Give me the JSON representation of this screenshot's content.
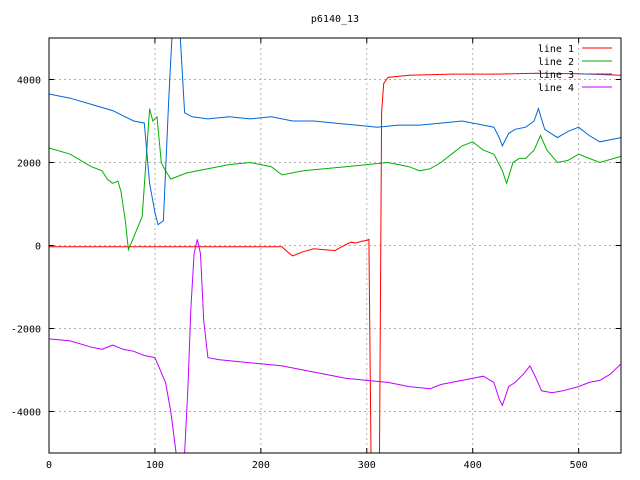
{
  "chart_data": {
    "type": "line",
    "title": "p6140_13",
    "xlabel": "",
    "ylabel": "",
    "xlim": [
      0,
      540
    ],
    "ylim": [
      -5000,
      5000
    ],
    "grid": true,
    "legend_position": "top-right",
    "x_ticks": [
      0,
      100,
      200,
      300,
      400,
      500
    ],
    "y_ticks": [
      -4000,
      -2000,
      0,
      2000,
      4000
    ],
    "x_tick_labels": [
      "0",
      "100",
      "200",
      "300",
      "400",
      "500"
    ],
    "y_tick_labels": [
      "-4000",
      "-2000",
      "0",
      "2000",
      "4000"
    ],
    "series": [
      {
        "name": "line 1",
        "color": "#ff0000",
        "points": [
          [
            0,
            -30
          ],
          [
            50,
            -30
          ],
          [
            100,
            -30
          ],
          [
            150,
            -30
          ],
          [
            200,
            -30
          ],
          [
            220,
            -30
          ],
          [
            225,
            -150
          ],
          [
            230,
            -250
          ],
          [
            240,
            -150
          ],
          [
            250,
            -80
          ],
          [
            260,
            -100
          ],
          [
            270,
            -120
          ],
          [
            275,
            -50
          ],
          [
            280,
            20
          ],
          [
            285,
            80
          ],
          [
            290,
            60
          ],
          [
            295,
            100
          ],
          [
            300,
            120
          ],
          [
            302,
            150
          ],
          [
            304,
            -5000
          ],
          [
            312,
            -5000
          ],
          [
            314,
            3200
          ],
          [
            316,
            3900
          ],
          [
            320,
            4050
          ],
          [
            340,
            4100
          ],
          [
            380,
            4130
          ],
          [
            420,
            4130
          ],
          [
            460,
            4150
          ],
          [
            500,
            4140
          ],
          [
            540,
            4100
          ]
        ]
      },
      {
        "name": "line 2",
        "color": "#00b000",
        "points": [
          [
            0,
            2350
          ],
          [
            20,
            2200
          ],
          [
            40,
            1900
          ],
          [
            50,
            1800
          ],
          [
            55,
            1600
          ],
          [
            60,
            1500
          ],
          [
            65,
            1550
          ],
          [
            68,
            1300
          ],
          [
            72,
            600
          ],
          [
            75,
            -100
          ],
          [
            80,
            200
          ],
          [
            88,
            700
          ],
          [
            95,
            3300
          ],
          [
            98,
            3000
          ],
          [
            102,
            3100
          ],
          [
            106,
            2000
          ],
          [
            110,
            1800
          ],
          [
            115,
            1600
          ],
          [
            130,
            1750
          ],
          [
            150,
            1850
          ],
          [
            170,
            1950
          ],
          [
            190,
            2000
          ],
          [
            210,
            1900
          ],
          [
            220,
            1700
          ],
          [
            240,
            1800
          ],
          [
            260,
            1850
          ],
          [
            280,
            1900
          ],
          [
            300,
            1950
          ],
          [
            320,
            2000
          ],
          [
            330,
            1950
          ],
          [
            340,
            1900
          ],
          [
            350,
            1800
          ],
          [
            360,
            1850
          ],
          [
            370,
            2000
          ],
          [
            380,
            2200
          ],
          [
            390,
            2400
          ],
          [
            400,
            2500
          ],
          [
            410,
            2300
          ],
          [
            420,
            2200
          ],
          [
            428,
            1800
          ],
          [
            432,
            1500
          ],
          [
            438,
            2000
          ],
          [
            444,
            2100
          ],
          [
            450,
            2100
          ],
          [
            458,
            2300
          ],
          [
            464,
            2650
          ],
          [
            470,
            2300
          ],
          [
            480,
            2000
          ],
          [
            490,
            2050
          ],
          [
            500,
            2200
          ],
          [
            510,
            2100
          ],
          [
            520,
            2000
          ],
          [
            540,
            2150
          ]
        ]
      },
      {
        "name": "line 3",
        "color": "#0066d8",
        "points": [
          [
            0,
            3650
          ],
          [
            20,
            3550
          ],
          [
            40,
            3400
          ],
          [
            60,
            3250
          ],
          [
            80,
            3000
          ],
          [
            90,
            2950
          ],
          [
            95,
            1500
          ],
          [
            100,
            800
          ],
          [
            103,
            500
          ],
          [
            108,
            600
          ],
          [
            113,
            3500
          ],
          [
            116,
            5000
          ],
          [
            124,
            5000
          ],
          [
            128,
            3200
          ],
          [
            135,
            3100
          ],
          [
            150,
            3050
          ],
          [
            170,
            3100
          ],
          [
            190,
            3050
          ],
          [
            210,
            3100
          ],
          [
            230,
            3000
          ],
          [
            250,
            3000
          ],
          [
            270,
            2950
          ],
          [
            290,
            2900
          ],
          [
            310,
            2850
          ],
          [
            330,
            2900
          ],
          [
            350,
            2900
          ],
          [
            370,
            2950
          ],
          [
            390,
            3000
          ],
          [
            410,
            2900
          ],
          [
            420,
            2850
          ],
          [
            425,
            2600
          ],
          [
            428,
            2400
          ],
          [
            434,
            2700
          ],
          [
            440,
            2800
          ],
          [
            450,
            2850
          ],
          [
            458,
            3000
          ],
          [
            462,
            3300
          ],
          [
            468,
            2800
          ],
          [
            480,
            2600
          ],
          [
            490,
            2750
          ],
          [
            500,
            2850
          ],
          [
            510,
            2650
          ],
          [
            520,
            2500
          ],
          [
            530,
            2550
          ],
          [
            540,
            2600
          ]
        ]
      },
      {
        "name": "line 4",
        "color": "#c000ff",
        "points": [
          [
            0,
            -2250
          ],
          [
            20,
            -2300
          ],
          [
            40,
            -2450
          ],
          [
            50,
            -2500
          ],
          [
            60,
            -2400
          ],
          [
            70,
            -2500
          ],
          [
            80,
            -2550
          ],
          [
            90,
            -2650
          ],
          [
            100,
            -2700
          ],
          [
            110,
            -3300
          ],
          [
            115,
            -4000
          ],
          [
            120,
            -5000
          ],
          [
            128,
            -5000
          ],
          [
            131,
            -3500
          ],
          [
            134,
            -1500
          ],
          [
            137,
            -200
          ],
          [
            140,
            150
          ],
          [
            143,
            -200
          ],
          [
            146,
            -1800
          ],
          [
            150,
            -2700
          ],
          [
            160,
            -2750
          ],
          [
            180,
            -2800
          ],
          [
            200,
            -2850
          ],
          [
            220,
            -2900
          ],
          [
            240,
            -3000
          ],
          [
            260,
            -3100
          ],
          [
            280,
            -3200
          ],
          [
            300,
            -3250
          ],
          [
            320,
            -3300
          ],
          [
            340,
            -3400
          ],
          [
            360,
            -3450
          ],
          [
            370,
            -3350
          ],
          [
            380,
            -3300
          ],
          [
            390,
            -3250
          ],
          [
            400,
            -3200
          ],
          [
            410,
            -3150
          ],
          [
            420,
            -3300
          ],
          [
            425,
            -3700
          ],
          [
            428,
            -3850
          ],
          [
            434,
            -3400
          ],
          [
            440,
            -3300
          ],
          [
            448,
            -3100
          ],
          [
            454,
            -2900
          ],
          [
            458,
            -3100
          ],
          [
            465,
            -3500
          ],
          [
            475,
            -3550
          ],
          [
            485,
            -3500
          ],
          [
            500,
            -3400
          ],
          [
            510,
            -3300
          ],
          [
            520,
            -3250
          ],
          [
            530,
            -3100
          ],
          [
            540,
            -2850
          ]
        ]
      }
    ]
  }
}
